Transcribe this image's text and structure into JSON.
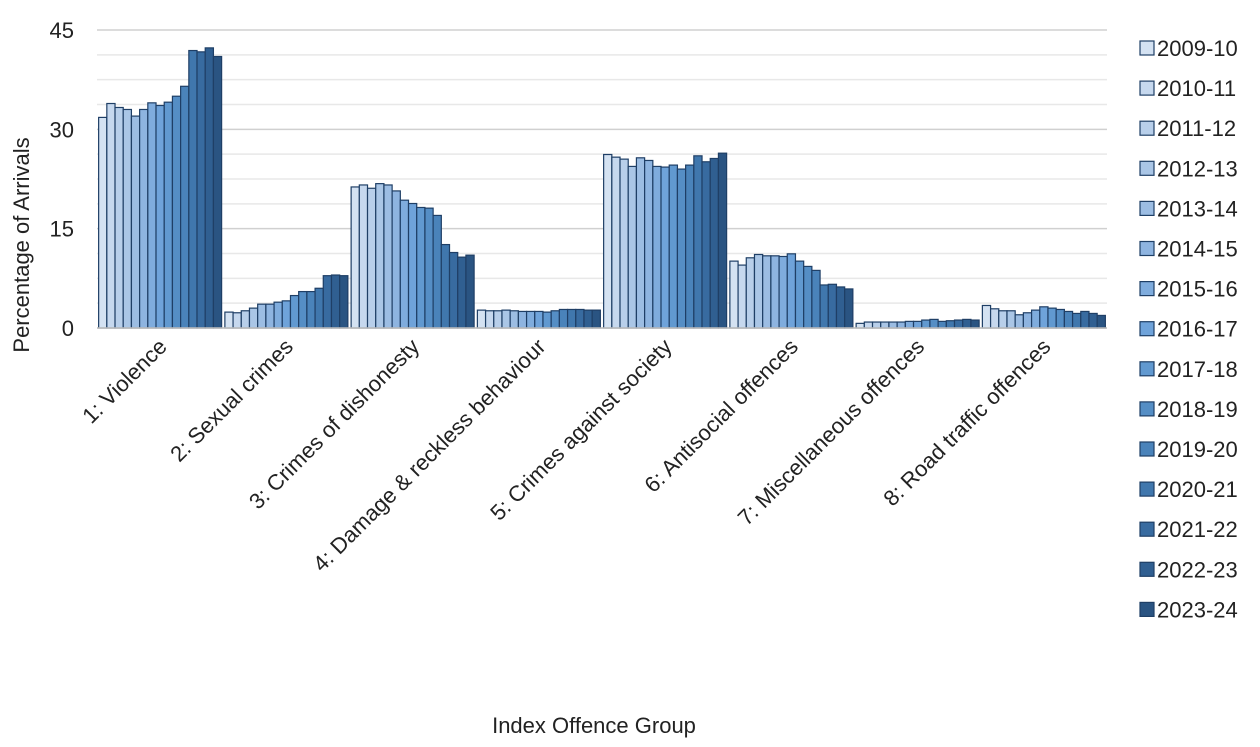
{
  "chart_data": {
    "type": "bar",
    "xlabel": "Index Offence Group",
    "ylabel": "Percentage of Arrivals",
    "ylim": [
      0,
      45
    ],
    "yticks": [
      0,
      15,
      30,
      45
    ],
    "grid": "horizontal minor lines every 3.75",
    "legend_position": "right",
    "categories": [
      "1: Violence",
      "2: Sexual crimes",
      "3: Crimes of dishonesty",
      "4: Damage & reckless behaviour",
      "5: Crimes against society",
      "6: Antisocial offences",
      "7: Miscellaneous offences",
      "8: Road traffic offences"
    ],
    "series": [
      {
        "name": "2009-10",
        "color": "#d4e2f2",
        "values": [
          31.8,
          2.4,
          21.3,
          2.7,
          26.2,
          10.1,
          0.7,
          3.4
        ]
      },
      {
        "name": "2010-11",
        "color": "#c6d8ee",
        "values": [
          33.9,
          2.3,
          21.6,
          2.6,
          25.8,
          9.5,
          0.9,
          2.9
        ]
      },
      {
        "name": "2011-12",
        "color": "#b8cfea",
        "values": [
          33.3,
          2.6,
          21.1,
          2.6,
          25.5,
          10.6,
          0.9,
          2.6
        ]
      },
      {
        "name": "2012-13",
        "color": "#aac6e6",
        "values": [
          33.0,
          3.0,
          21.8,
          2.7,
          24.4,
          11.1,
          0.9,
          2.6
        ]
      },
      {
        "name": "2013-14",
        "color": "#9cbde3",
        "values": [
          32.0,
          3.6,
          21.6,
          2.6,
          25.7,
          10.9,
          0.9,
          2.0
        ]
      },
      {
        "name": "2014-15",
        "color": "#8eb4e0",
        "values": [
          33.0,
          3.6,
          20.7,
          2.5,
          25.3,
          10.9,
          0.9,
          2.3
        ]
      },
      {
        "name": "2015-16",
        "color": "#7facdd",
        "values": [
          34.0,
          3.9,
          19.3,
          2.5,
          24.4,
          10.8,
          1.0,
          2.7
        ]
      },
      {
        "name": "2016-17",
        "color": "#6fa3da",
        "values": [
          33.6,
          4.1,
          18.8,
          2.5,
          24.3,
          11.2,
          1.0,
          3.2
        ]
      },
      {
        "name": "2017-18",
        "color": "#6199d0",
        "values": [
          34.1,
          4.9,
          18.2,
          2.4,
          24.6,
          10.1,
          1.2,
          3.0
        ]
      },
      {
        "name": "2018-19",
        "color": "#558ec5",
        "values": [
          35.0,
          5.5,
          18.1,
          2.6,
          24.0,
          9.3,
          1.3,
          2.8
        ]
      },
      {
        "name": "2019-20",
        "color": "#4a83ba",
        "values": [
          36.5,
          5.5,
          17.0,
          2.8,
          24.6,
          8.7,
          1.0,
          2.5
        ]
      },
      {
        "name": "2020-21",
        "color": "#4077ad",
        "values": [
          41.9,
          6.0,
          12.6,
          2.8,
          26.0,
          6.5,
          1.1,
          2.2
        ]
      },
      {
        "name": "2021-22",
        "color": "#386ba0",
        "values": [
          41.7,
          7.9,
          11.4,
          2.8,
          25.1,
          6.6,
          1.2,
          2.5
        ]
      },
      {
        "name": "2022-23",
        "color": "#305f91",
        "values": [
          42.3,
          8.0,
          10.7,
          2.7,
          25.6,
          6.2,
          1.3,
          2.2
        ]
      },
      {
        "name": "2023-24",
        "color": "#2a5482",
        "values": [
          41.0,
          7.9,
          11.0,
          2.7,
          26.4,
          5.9,
          1.2,
          1.9
        ]
      }
    ]
  }
}
